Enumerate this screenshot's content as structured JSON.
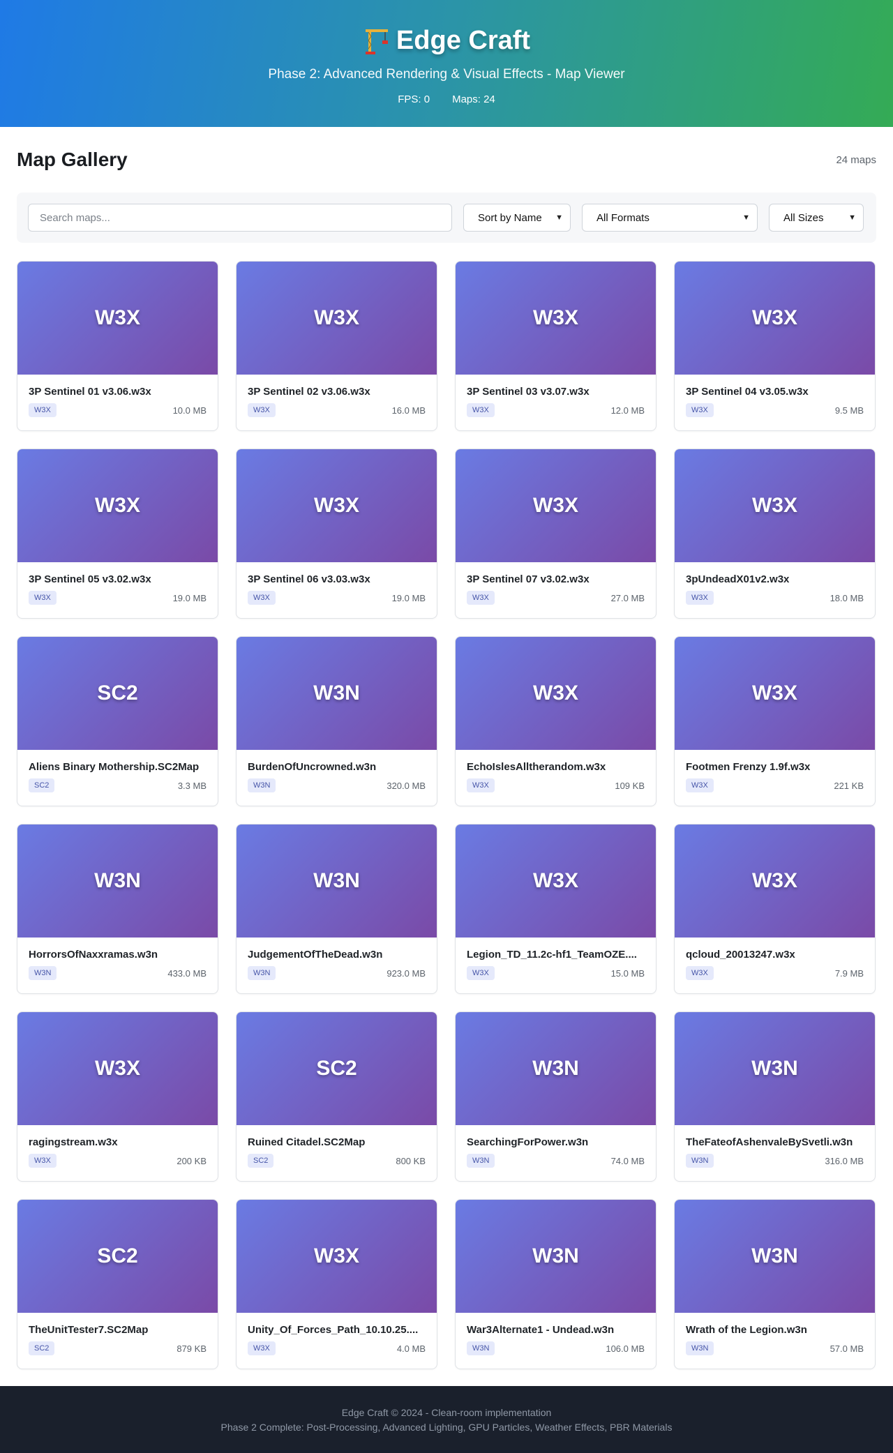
{
  "header": {
    "title": "Edge Craft",
    "icon": "construction-crane-icon",
    "subtitle": "Phase 2: Advanced Rendering & Visual Effects - Map Viewer",
    "fps": "FPS: 0",
    "maps": "Maps: 24"
  },
  "gallery": {
    "title": "Map Gallery",
    "count": "24 maps"
  },
  "filters": {
    "search_placeholder": "Search maps...",
    "sort": "Sort by Name",
    "format": "All Formats",
    "size": "All Sizes"
  },
  "colors": {
    "header_gradient": [
      "#1f7ae6",
      "#34ab55"
    ],
    "thumb_gradient": [
      "#6a7be3",
      "#7a4aa7"
    ],
    "badge_bg": "#e5e9fb",
    "badge_text": "#4655a8",
    "footer_bg": "#1a202c"
  },
  "maps": [
    {
      "format": "W3X",
      "name": "3P Sentinel 01 v3.06.w3x",
      "size": "10.0 MB"
    },
    {
      "format": "W3X",
      "name": "3P Sentinel 02 v3.06.w3x",
      "size": "16.0 MB"
    },
    {
      "format": "W3X",
      "name": "3P Sentinel 03 v3.07.w3x",
      "size": "12.0 MB"
    },
    {
      "format": "W3X",
      "name": "3P Sentinel 04 v3.05.w3x",
      "size": "9.5 MB"
    },
    {
      "format": "W3X",
      "name": "3P Sentinel 05 v3.02.w3x",
      "size": "19.0 MB"
    },
    {
      "format": "W3X",
      "name": "3P Sentinel 06 v3.03.w3x",
      "size": "19.0 MB"
    },
    {
      "format": "W3X",
      "name": "3P Sentinel 07 v3.02.w3x",
      "size": "27.0 MB"
    },
    {
      "format": "W3X",
      "name": "3pUndeadX01v2.w3x",
      "size": "18.0 MB"
    },
    {
      "format": "SC2",
      "name": "Aliens Binary Mothership.SC2Map",
      "size": "3.3 MB"
    },
    {
      "format": "W3N",
      "name": "BurdenOfUncrowned.w3n",
      "size": "320.0 MB"
    },
    {
      "format": "W3X",
      "name": "EchoIslesAlltherandom.w3x",
      "size": "109 KB"
    },
    {
      "format": "W3X",
      "name": "Footmen Frenzy 1.9f.w3x",
      "size": "221 KB"
    },
    {
      "format": "W3N",
      "name": "HorrorsOfNaxxramas.w3n",
      "size": "433.0 MB"
    },
    {
      "format": "W3N",
      "name": "JudgementOfTheDead.w3n",
      "size": "923.0 MB"
    },
    {
      "format": "W3X",
      "name": "Legion_TD_11.2c-hf1_TeamOZE....",
      "size": "15.0 MB"
    },
    {
      "format": "W3X",
      "name": "qcloud_20013247.w3x",
      "size": "7.9 MB"
    },
    {
      "format": "W3X",
      "name": "ragingstream.w3x",
      "size": "200 KB"
    },
    {
      "format": "SC2",
      "name": "Ruined Citadel.SC2Map",
      "size": "800 KB"
    },
    {
      "format": "W3N",
      "name": "SearchingForPower.w3n",
      "size": "74.0 MB"
    },
    {
      "format": "W3N",
      "name": "TheFateofAshenvaleBySvetli.w3n",
      "size": "316.0 MB"
    },
    {
      "format": "SC2",
      "name": "TheUnitTester7.SC2Map",
      "size": "879 KB"
    },
    {
      "format": "W3X",
      "name": "Unity_Of_Forces_Path_10.10.25....",
      "size": "4.0 MB"
    },
    {
      "format": "W3N",
      "name": "War3Alternate1 - Undead.w3n",
      "size": "106.0 MB"
    },
    {
      "format": "W3N",
      "name": "Wrath of the Legion.w3n",
      "size": "57.0 MB"
    }
  ],
  "footer": {
    "line1": "Edge Craft © 2024 - Clean-room implementation",
    "line2": "Phase 2 Complete: Post-Processing, Advanced Lighting, GPU Particles, Weather Effects, PBR Materials"
  }
}
